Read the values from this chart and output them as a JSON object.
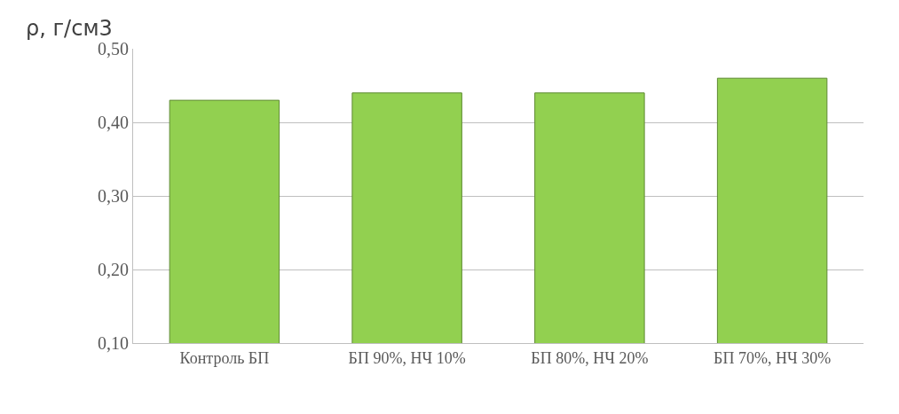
{
  "chart_data": {
    "type": "bar",
    "ylabel": "ρ, г/см3",
    "categories": [
      "Контроль БП",
      "БП 90%, НЧ 10%",
      "БП 80%, НЧ 20%",
      "БП 70%, НЧ 30%"
    ],
    "values": [
      0.43,
      0.44,
      0.44,
      0.46
    ],
    "color": "#92d050",
    "ylim": [
      0.1,
      0.5
    ],
    "yticks": [
      {
        "value": 0.1,
        "label": "0,10"
      },
      {
        "value": 0.2,
        "label": "0,20"
      },
      {
        "value": 0.3,
        "label": "0,30"
      },
      {
        "value": 0.4,
        "label": "0,40"
      },
      {
        "value": 0.5,
        "label": "0,50"
      }
    ],
    "grid": "y"
  }
}
